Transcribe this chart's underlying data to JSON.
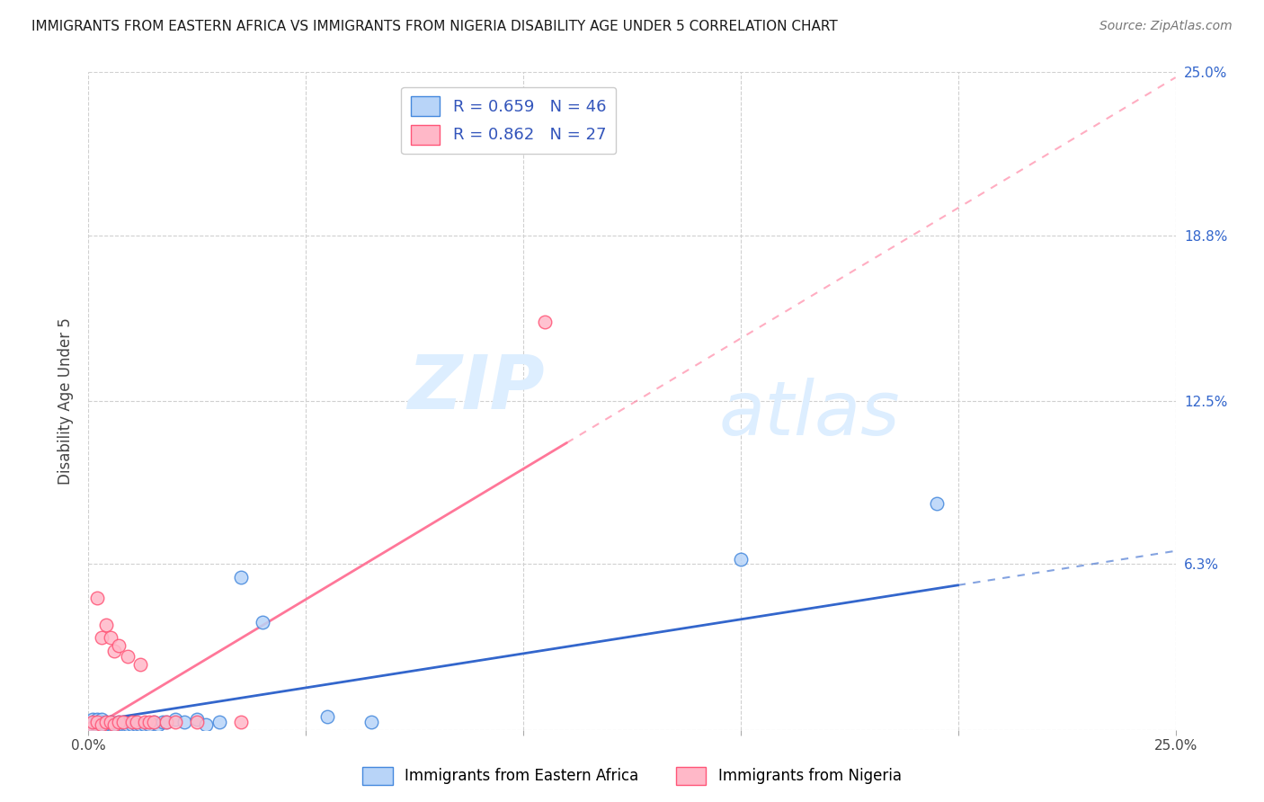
{
  "title": "IMMIGRANTS FROM EASTERN AFRICA VS IMMIGRANTS FROM NIGERIA DISABILITY AGE UNDER 5 CORRELATION CHART",
  "source": "Source: ZipAtlas.com",
  "ylabel": "Disability Age Under 5",
  "xlim": [
    0,
    0.25
  ],
  "ylim": [
    0,
    0.25
  ],
  "xticks": [
    0.0,
    0.05,
    0.1,
    0.15,
    0.2,
    0.25
  ],
  "yticks": [
    0.0,
    0.063,
    0.125,
    0.188,
    0.25
  ],
  "ytick_labels": [
    "",
    "6.3%",
    "12.5%",
    "18.8%",
    "25.0%"
  ],
  "xtick_labels": [
    "0.0%",
    "",
    "",
    "",
    "",
    "25.0%"
  ],
  "grid_color": "#d0d0d0",
  "background_color": "#ffffff",
  "series": [
    {
      "name": "Immigrants from Eastern Africa",
      "R": "0.659",
      "N": "46",
      "color_scatter": "#b8d4f8",
      "color_line": "#3366cc",
      "color_edge": "#4488dd",
      "color_legend_face": "#b8d4f8",
      "color_legend_edge": "#4488dd",
      "x": [
        0.001,
        0.001,
        0.001,
        0.002,
        0.002,
        0.002,
        0.002,
        0.003,
        0.003,
        0.003,
        0.003,
        0.004,
        0.004,
        0.004,
        0.005,
        0.005,
        0.005,
        0.006,
        0.006,
        0.007,
        0.007,
        0.007,
        0.008,
        0.008,
        0.009,
        0.009,
        0.01,
        0.011,
        0.012,
        0.013,
        0.014,
        0.015,
        0.016,
        0.017,
        0.018,
        0.02,
        0.022,
        0.025,
        0.027,
        0.03,
        0.035,
        0.04,
        0.055,
        0.065,
        0.15,
        0.195
      ],
      "y": [
        0.002,
        0.003,
        0.004,
        0.001,
        0.002,
        0.003,
        0.004,
        0.001,
        0.002,
        0.003,
        0.004,
        0.001,
        0.002,
        0.003,
        0.001,
        0.002,
        0.003,
        0.001,
        0.002,
        0.001,
        0.002,
        0.003,
        0.001,
        0.002,
        0.001,
        0.002,
        0.002,
        0.002,
        0.002,
        0.002,
        0.002,
        0.003,
        0.002,
        0.003,
        0.003,
        0.004,
        0.003,
        0.004,
        0.002,
        0.003,
        0.058,
        0.041,
        0.005,
        0.003,
        0.065,
        0.086
      ],
      "trend_x": [
        0.0,
        0.25
      ],
      "trend_y": [
        0.003,
        0.068
      ],
      "trend_solid_end": 0.2
    },
    {
      "name": "Immigrants from Nigeria",
      "R": "0.862",
      "N": "27",
      "color_scatter": "#ffb8c8",
      "color_line": "#ff7799",
      "color_edge": "#ff5577",
      "color_legend_face": "#ffb8c8",
      "color_legend_edge": "#ff5577",
      "x": [
        0.001,
        0.001,
        0.002,
        0.002,
        0.003,
        0.003,
        0.004,
        0.004,
        0.005,
        0.005,
        0.006,
        0.006,
        0.007,
        0.007,
        0.008,
        0.009,
        0.01,
        0.011,
        0.012,
        0.013,
        0.014,
        0.015,
        0.018,
        0.02,
        0.025,
        0.035,
        0.105
      ],
      "y": [
        0.001,
        0.003,
        0.003,
        0.05,
        0.002,
        0.035,
        0.003,
        0.04,
        0.003,
        0.035,
        0.002,
        0.03,
        0.003,
        0.032,
        0.003,
        0.028,
        0.003,
        0.003,
        0.025,
        0.003,
        0.003,
        0.003,
        0.003,
        0.003,
        0.003,
        0.003,
        0.155
      ],
      "trend_x": [
        0.0,
        0.25
      ],
      "trend_y": [
        0.0,
        0.248
      ],
      "trend_solid_end": 0.11
    }
  ],
  "legend_text_color": "#3355bb",
  "legend_N_color": "#ee3333",
  "watermark_line1": "ZIP",
  "watermark_line2": "atlas",
  "watermark_color": "#ddeeff"
}
